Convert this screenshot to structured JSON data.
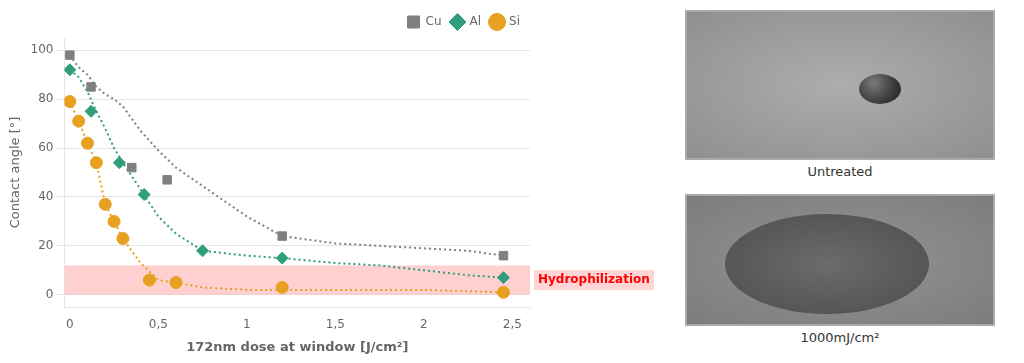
{
  "chart_data": {
    "type": "line",
    "xlabel": "172nm dose at window [J/cm²]",
    "ylabel": "Contact angle [°]",
    "xlim": [
      -0.03,
      2.6
    ],
    "ylim": [
      -5,
      105
    ],
    "xticks": [
      0,
      {
        "value": 0.5,
        "label": "0,5"
      },
      1,
      {
        "value": 1.5,
        "label": "1,5"
      },
      2,
      {
        "value": 2.5,
        "label": "2,5"
      }
    ],
    "yticks": [
      0,
      20,
      40,
      60,
      80,
      100
    ],
    "grid": "y",
    "legend": "upper right",
    "series": [
      {
        "name": "Cu",
        "color": "#808080",
        "marker": "square",
        "line_style": "dotted",
        "x": [
          0.0,
          0.05,
          0.1,
          0.15,
          0.2,
          0.25,
          0.3,
          0.4,
          0.5,
          0.6,
          0.7,
          0.8,
          1.0,
          1.2,
          1.5,
          1.75,
          2.0,
          2.25,
          2.45
        ],
        "values": [
          98,
          93,
          90,
          85,
          82,
          80,
          77,
          67,
          59,
          52,
          47,
          42,
          32,
          24,
          21,
          20,
          19,
          18,
          16
        ],
        "marker_x": [
          0.0,
          0.12,
          0.35,
          0.55,
          1.2,
          2.45
        ],
        "marker_values": [
          98,
          85,
          52,
          47,
          24,
          16
        ]
      },
      {
        "name": "Al",
        "color": "#2e9e7d",
        "marker": "diamond",
        "line_style": "dotted",
        "x": [
          0.0,
          0.05,
          0.1,
          0.15,
          0.2,
          0.25,
          0.3,
          0.4,
          0.5,
          0.6,
          0.75,
          1.0,
          1.2,
          1.5,
          1.75,
          2.0,
          2.25,
          2.45
        ],
        "values": [
          92,
          89,
          83,
          75,
          68,
          60,
          54,
          43,
          32,
          25,
          18,
          16,
          15,
          13,
          12,
          10,
          8,
          7
        ],
        "marker_x": [
          0.0,
          0.12,
          0.28,
          0.42,
          0.75,
          1.2,
          2.45
        ],
        "marker_values": [
          92,
          75,
          54,
          41,
          18,
          15,
          7
        ]
      },
      {
        "name": "Si",
        "color": "#e8a020",
        "marker": "circle",
        "line_style": "dotted",
        "x": [
          0.0,
          0.05,
          0.1,
          0.15,
          0.2,
          0.25,
          0.3,
          0.4,
          0.5,
          0.6,
          0.75,
          1.0,
          1.5,
          2.0,
          2.45
        ],
        "values": [
          79,
          71,
          62,
          54,
          37,
          30,
          23,
          13,
          6,
          5,
          3,
          2,
          2,
          2,
          1
        ],
        "marker_x": [
          0.0,
          0.05,
          0.1,
          0.15,
          0.2,
          0.25,
          0.3,
          0.45,
          0.6,
          1.2,
          2.45
        ],
        "marker_values": [
          79,
          71,
          62,
          54,
          37,
          30,
          23,
          6,
          5,
          3,
          1
        ]
      }
    ],
    "annotations": [
      {
        "text": "Hydrophilization",
        "y_from": 0,
        "y_to": 12,
        "color": "#ffb0b0"
      }
    ],
    "panel_labels": [
      "Untreated",
      "1000mJ/cm²"
    ]
  }
}
